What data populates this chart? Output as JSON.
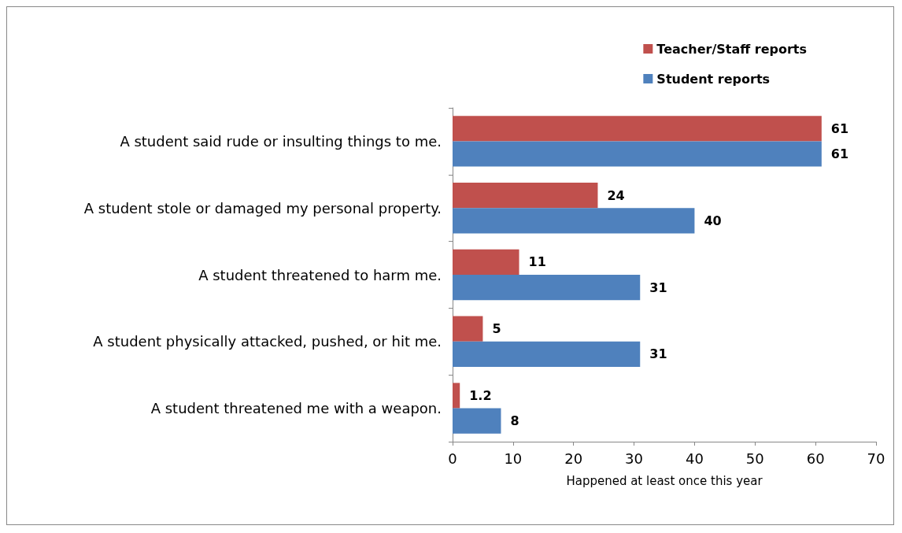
{
  "chart_data": {
    "type": "bar",
    "orientation": "horizontal",
    "xlabel": "Happened at least once this year",
    "categories": [
      "A student said rude or insulting things to me.",
      "A student stole or damaged my personal property.",
      "A student threatened to harm me.",
      "A student physically attacked, pushed, or hit me.",
      "A student threatened me with a weapon."
    ],
    "series": [
      {
        "name": "Teacher/Staff reports",
        "color": "#c0504d",
        "values": [
          61,
          24,
          11,
          5,
          1.2
        ]
      },
      {
        "name": "Student reports",
        "color": "#4f81bd",
        "values": [
          61,
          40,
          31,
          31,
          8
        ]
      }
    ],
    "xlim": [
      0,
      70
    ],
    "xticks": [
      0,
      10,
      20,
      30,
      40,
      50,
      60,
      70
    ],
    "data_labels": true,
    "legend": "top right",
    "grid": false
  }
}
